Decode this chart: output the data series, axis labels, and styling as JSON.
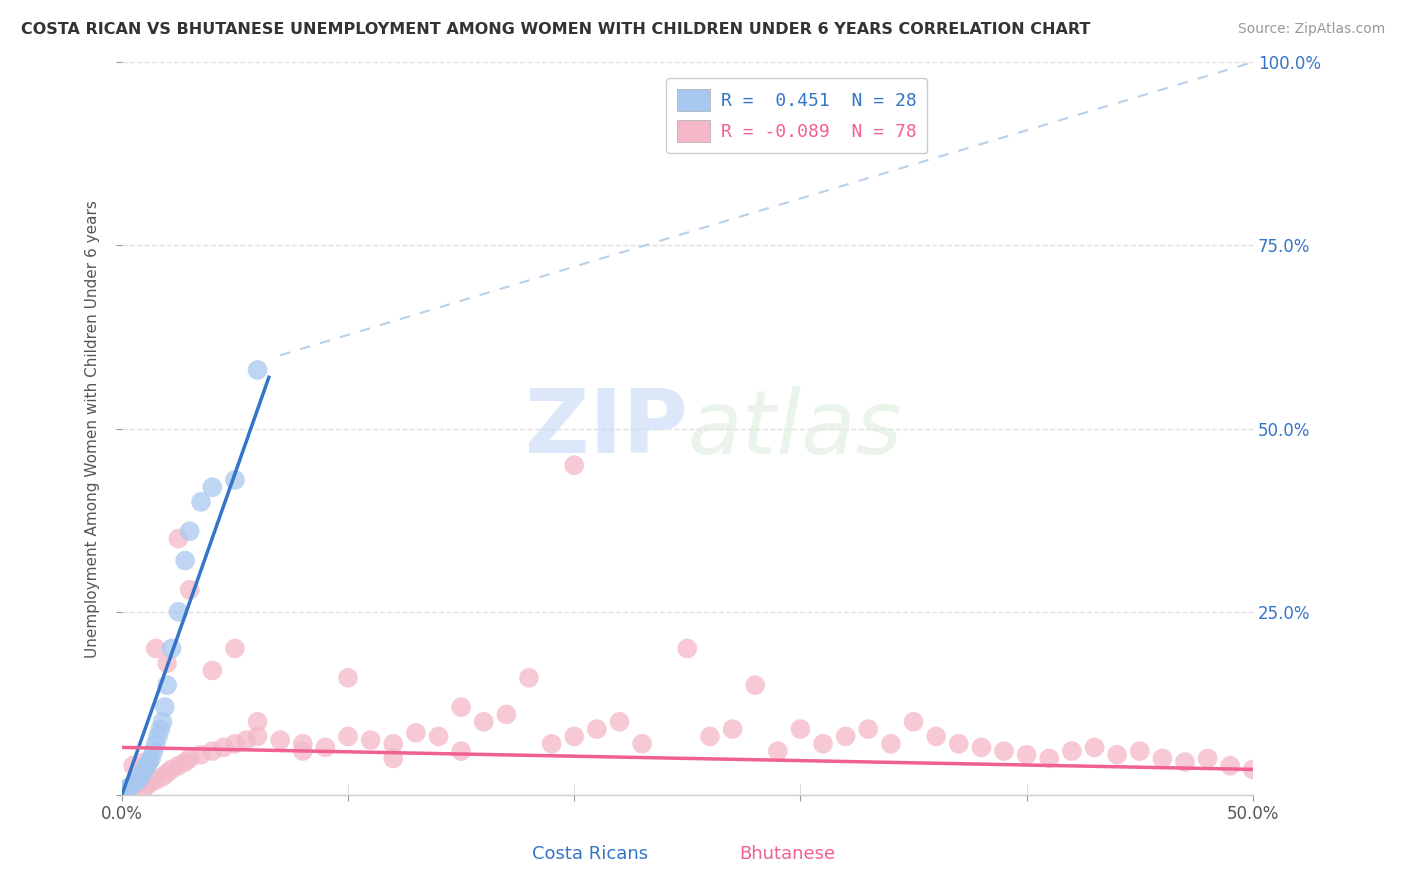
{
  "title": "COSTA RICAN VS BHUTANESE UNEMPLOYMENT AMONG WOMEN WITH CHILDREN UNDER 6 YEARS CORRELATION CHART",
  "source": "Source: ZipAtlas.com",
  "ylabel": "Unemployment Among Women with Children Under 6 years",
  "xlim": [
    0.0,
    0.5
  ],
  "ylim": [
    0.0,
    1.0
  ],
  "xticks": [
    0.0,
    0.1,
    0.2,
    0.3,
    0.4,
    0.5
  ],
  "xtick_labels": [
    "0.0%",
    "",
    "",
    "",
    "",
    "50.0%"
  ],
  "yticks": [
    0.0,
    0.25,
    0.5,
    0.75,
    1.0
  ],
  "ytick_labels_right": [
    "",
    "25.0%",
    "50.0%",
    "75.0%",
    "100.0%"
  ],
  "legend_r1": "R =  0.451  N = 28",
  "legend_r2": "R = -0.089  N = 78",
  "cr_color": "#a8c8f0",
  "bh_color": "#f4b8c8",
  "cr_line_color": "#3575c8",
  "bh_line_color": "#f06090",
  "diag_color": "#b8d0e8",
  "background": "#ffffff",
  "grid_color": "#e0e0e0",
  "watermark_zip": "ZIP",
  "watermark_atlas": "atlas",
  "cr_scatter_x": [
    0.001,
    0.002,
    0.003,
    0.004,
    0.005,
    0.006,
    0.007,
    0.008,
    0.009,
    0.01,
    0.011,
    0.012,
    0.013,
    0.014,
    0.015,
    0.016,
    0.017,
    0.018,
    0.019,
    0.02,
    0.022,
    0.025,
    0.028,
    0.03,
    0.035,
    0.04,
    0.05,
    0.06
  ],
  "cr_scatter_y": [
    0.005,
    0.008,
    0.01,
    0.012,
    0.015,
    0.018,
    0.02,
    0.025,
    0.03,
    0.035,
    0.04,
    0.045,
    0.05,
    0.06,
    0.07,
    0.08,
    0.09,
    0.1,
    0.12,
    0.15,
    0.2,
    0.25,
    0.32,
    0.36,
    0.4,
    0.42,
    0.43,
    0.58
  ],
  "bh_scatter_x": [
    0.001,
    0.002,
    0.003,
    0.005,
    0.007,
    0.009,
    0.01,
    0.012,
    0.015,
    0.018,
    0.02,
    0.022,
    0.025,
    0.028,
    0.03,
    0.035,
    0.04,
    0.045,
    0.05,
    0.055,
    0.06,
    0.07,
    0.08,
    0.09,
    0.1,
    0.11,
    0.12,
    0.13,
    0.14,
    0.15,
    0.16,
    0.17,
    0.18,
    0.19,
    0.2,
    0.21,
    0.22,
    0.23,
    0.25,
    0.26,
    0.27,
    0.28,
    0.29,
    0.3,
    0.31,
    0.32,
    0.33,
    0.34,
    0.35,
    0.36,
    0.37,
    0.38,
    0.39,
    0.4,
    0.41,
    0.42,
    0.43,
    0.44,
    0.45,
    0.46,
    0.47,
    0.48,
    0.49,
    0.5,
    0.005,
    0.01,
    0.015,
    0.02,
    0.025,
    0.03,
    0.04,
    0.05,
    0.06,
    0.08,
    0.1,
    0.12,
    0.15,
    0.2
  ],
  "bh_scatter_y": [
    0.005,
    0.008,
    0.01,
    0.012,
    0.015,
    0.018,
    0.01,
    0.015,
    0.02,
    0.025,
    0.03,
    0.035,
    0.04,
    0.045,
    0.05,
    0.055,
    0.06,
    0.065,
    0.07,
    0.075,
    0.08,
    0.075,
    0.07,
    0.065,
    0.08,
    0.075,
    0.07,
    0.085,
    0.08,
    0.12,
    0.1,
    0.11,
    0.16,
    0.07,
    0.08,
    0.09,
    0.1,
    0.07,
    0.2,
    0.08,
    0.09,
    0.15,
    0.06,
    0.09,
    0.07,
    0.08,
    0.09,
    0.07,
    0.1,
    0.08,
    0.07,
    0.065,
    0.06,
    0.055,
    0.05,
    0.06,
    0.065,
    0.055,
    0.06,
    0.05,
    0.045,
    0.05,
    0.04,
    0.035,
    0.04,
    0.045,
    0.2,
    0.18,
    0.35,
    0.28,
    0.17,
    0.2,
    0.1,
    0.06,
    0.16,
    0.05,
    0.06,
    0.45
  ],
  "cr_trend_x": [
    0.0,
    0.065
  ],
  "cr_trend_y": [
    0.0,
    0.57
  ],
  "bh_trend_x": [
    0.0,
    0.5
  ],
  "bh_trend_y": [
    0.065,
    0.035
  ]
}
